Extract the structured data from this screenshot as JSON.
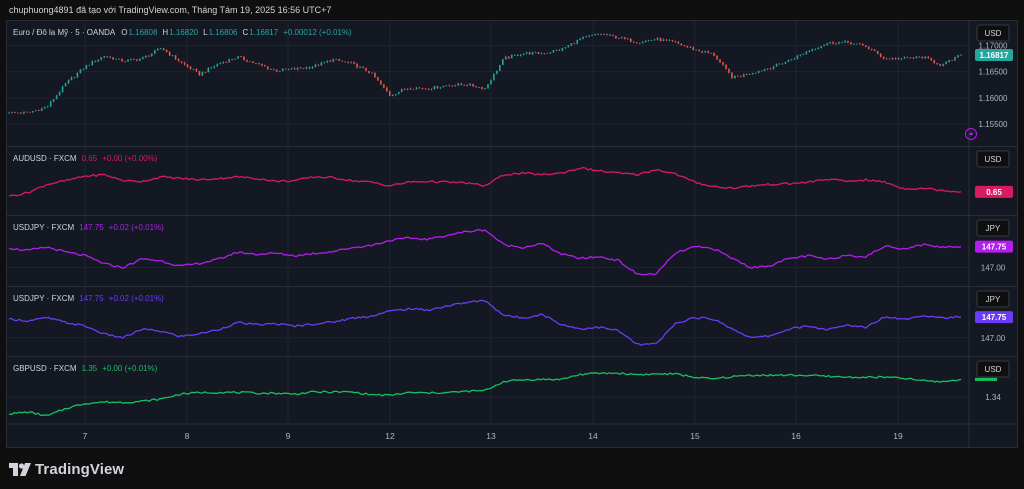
{
  "header": {
    "credit": "chuphuong4891 đã tạo với TradingView.com, Tháng Tám 19, 2025 16:56 UTC+7"
  },
  "footer": {
    "brand": "TradingView"
  },
  "colors": {
    "background": "#141823",
    "grid": "#1f2330",
    "eurusd_up": "#26a69a",
    "eurusd_down": "#ef5350",
    "audusd": "#d81b60",
    "usdjpy1": "#b41cf0",
    "usdjpy2": "#6a3cf5",
    "gbpusd": "#16c060"
  },
  "time_axis": {
    "ticks": [
      "7",
      "8",
      "9",
      "12",
      "13",
      "14",
      "15",
      "16",
      "19"
    ]
  },
  "chart_data": [
    {
      "type": "candlestick",
      "legend": {
        "symbol": "Euro / Đô la Mỹ · 5 · OANDA",
        "open_label": "O",
        "open": "1.16808",
        "high_label": "H",
        "high": "1.16820",
        "low_label": "L",
        "low": "1.16806",
        "close_label": "C",
        "close": "1.16817",
        "change": "+0.00012 (+0.01%)"
      },
      "currency": "USD",
      "last_price": "1.16817",
      "ylim": [
        1.152,
        1.1735
      ],
      "y_ticks": [
        "1.17000",
        "1.16500",
        "1.16000",
        "1.15500"
      ],
      "x": [
        0,
        2,
        4,
        6,
        8,
        10,
        12,
        14,
        16,
        18,
        20,
        22,
        24,
        26,
        28,
        30,
        32,
        34,
        36,
        38,
        40,
        42,
        44,
        46,
        48,
        50,
        52,
        54,
        56,
        58,
        60,
        62,
        64,
        66,
        68,
        70,
        72,
        74,
        76,
        78,
        80,
        82,
        84,
        86,
        88,
        90,
        92,
        94,
        96,
        98,
        100
      ],
      "y": [
        1.1572,
        1.1572,
        1.1583,
        1.1628,
        1.166,
        1.168,
        1.167,
        1.1675,
        1.1695,
        1.1668,
        1.1645,
        1.1665,
        1.1678,
        1.1665,
        1.1652,
        1.1655,
        1.166,
        1.1673,
        1.1665,
        1.1648,
        1.1605,
        1.162,
        1.1618,
        1.1624,
        1.1626,
        1.1618,
        1.1675,
        1.1685,
        1.1685,
        1.1692,
        1.1712,
        1.1722,
        1.1715,
        1.1706,
        1.1712,
        1.1705,
        1.1692,
        1.1683,
        1.1638,
        1.1648,
        1.1658,
        1.1672,
        1.169,
        1.1705,
        1.1706,
        1.1698,
        1.1675,
        1.1675,
        1.1678,
        1.1662,
        1.1682
      ]
    },
    {
      "type": "line",
      "legend": {
        "symbol": "AUDUSD · FXCM",
        "value": "0.65",
        "change": "+0.00 (+0.00%)"
      },
      "currency": "USD",
      "last_label": "0.65",
      "ylim": [
        0.648,
        0.6555
      ],
      "y_ticks": [],
      "x": [
        0,
        2,
        4,
        6,
        8,
        10,
        12,
        14,
        16,
        18,
        20,
        22,
        24,
        26,
        28,
        30,
        32,
        34,
        36,
        38,
        40,
        42,
        44,
        46,
        48,
        50,
        52,
        54,
        56,
        58,
        60,
        62,
        64,
        66,
        68,
        70,
        72,
        74,
        76,
        78,
        80,
        82,
        84,
        86,
        88,
        90,
        92,
        94,
        96,
        98,
        100
      ],
      "y": [
        0.6497,
        0.6502,
        0.6513,
        0.6518,
        0.6524,
        0.6526,
        0.6518,
        0.6517,
        0.6523,
        0.6521,
        0.6519,
        0.6521,
        0.6523,
        0.6521,
        0.6517,
        0.6518,
        0.6523,
        0.6522,
        0.6518,
        0.6516,
        0.6511,
        0.6516,
        0.6517,
        0.6516,
        0.6515,
        0.6511,
        0.6526,
        0.6528,
        0.6526,
        0.6528,
        0.6535,
        0.6531,
        0.6528,
        0.6526,
        0.6533,
        0.6527,
        0.6516,
        0.651,
        0.6508,
        0.6511,
        0.6513,
        0.6514,
        0.6516,
        0.652,
        0.6517,
        0.6519,
        0.6516,
        0.6507,
        0.6508,
        0.6505,
        0.6503
      ]
    },
    {
      "type": "line",
      "legend": {
        "symbol": "USDJPY · FXCM",
        "value": "147.75",
        "change": "+0.02 (+0.01%)"
      },
      "currency": "JPY",
      "last_label": "147.75",
      "ylim": [
        146.55,
        148.65
      ],
      "y_ticks": [
        "147.00"
      ],
      "x": [
        0,
        2,
        4,
        6,
        8,
        10,
        12,
        14,
        16,
        18,
        20,
        22,
        24,
        26,
        28,
        30,
        32,
        34,
        36,
        38,
        40,
        42,
        44,
        46,
        48,
        50,
        52,
        54,
        56,
        58,
        60,
        62,
        64,
        66,
        68,
        70,
        72,
        74,
        76,
        78,
        80,
        82,
        84,
        86,
        88,
        90,
        92,
        94,
        96,
        98,
        100
      ],
      "y": [
        147.7,
        147.62,
        147.74,
        147.56,
        147.43,
        147.14,
        147.0,
        147.32,
        147.24,
        147.05,
        147.15,
        147.3,
        147.56,
        147.48,
        147.52,
        147.43,
        147.51,
        147.58,
        147.72,
        147.8,
        147.98,
        148.07,
        148.02,
        148.17,
        148.3,
        148.37,
        147.82,
        147.73,
        147.87,
        147.49,
        147.33,
        147.39,
        147.26,
        146.75,
        146.77,
        147.52,
        147.75,
        147.69,
        147.33,
        146.99,
        147.08,
        147.33,
        147.43,
        147.29,
        147.46,
        147.39,
        147.78,
        147.68,
        147.83,
        147.74,
        147.76
      ]
    },
    {
      "type": "line",
      "legend": {
        "symbol": "USDJPY · FXCM",
        "value": "147.75",
        "change": "+0.02 (+0.01%)"
      },
      "currency": "JPY",
      "last_label": "147.75",
      "ylim": [
        146.55,
        148.65
      ],
      "y_ticks": [
        "147.00"
      ],
      "x": [
        0,
        2,
        4,
        6,
        8,
        10,
        12,
        14,
        16,
        18,
        20,
        22,
        24,
        26,
        28,
        30,
        32,
        34,
        36,
        38,
        40,
        42,
        44,
        46,
        48,
        50,
        52,
        54,
        56,
        58,
        60,
        62,
        64,
        66,
        68,
        70,
        72,
        74,
        76,
        78,
        80,
        82,
        84,
        86,
        88,
        90,
        92,
        94,
        96,
        98,
        100
      ],
      "y": [
        147.7,
        147.62,
        147.74,
        147.56,
        147.43,
        147.14,
        147.0,
        147.32,
        147.24,
        147.05,
        147.15,
        147.3,
        147.56,
        147.48,
        147.52,
        147.43,
        147.51,
        147.58,
        147.72,
        147.8,
        147.98,
        148.07,
        148.02,
        148.17,
        148.3,
        148.37,
        147.82,
        147.73,
        147.87,
        147.49,
        147.33,
        147.39,
        147.26,
        146.75,
        146.77,
        147.52,
        147.75,
        147.69,
        147.33,
        146.99,
        147.08,
        147.33,
        147.43,
        147.29,
        147.46,
        147.39,
        147.78,
        147.68,
        147.83,
        147.74,
        147.76
      ]
    },
    {
      "type": "line",
      "legend": {
        "symbol": "GBPUSD · FXCM",
        "value": "1.35",
        "change": "+0.00 (+0.01%)"
      },
      "currency": "USD",
      "last_label": "",
      "ylim": [
        1.33,
        1.357
      ],
      "y_ticks": [
        "1.34"
      ],
      "x": [
        0,
        2,
        4,
        6,
        8,
        10,
        12,
        14,
        16,
        18,
        20,
        22,
        24,
        26,
        28,
        30,
        32,
        34,
        36,
        38,
        40,
        42,
        44,
        46,
        48,
        50,
        52,
        54,
        56,
        58,
        60,
        62,
        64,
        66,
        68,
        70,
        72,
        74,
        76,
        78,
        80,
        82,
        84,
        86,
        88,
        90,
        92,
        94,
        96,
        98,
        100
      ],
      "y": [
        1.3315,
        1.3325,
        1.3305,
        1.3343,
        1.3368,
        1.3375,
        1.3373,
        1.3379,
        1.339,
        1.3415,
        1.3422,
        1.3423,
        1.3423,
        1.3419,
        1.3419,
        1.3415,
        1.3425,
        1.3425,
        1.3425,
        1.3412,
        1.3408,
        1.3422,
        1.342,
        1.3422,
        1.3428,
        1.3432,
        1.3478,
        1.3486,
        1.3488,
        1.3488,
        1.3513,
        1.3519,
        1.3519,
        1.3512,
        1.3515,
        1.3515,
        1.3499,
        1.349,
        1.3502,
        1.3509,
        1.3509,
        1.3509,
        1.3508,
        1.3503,
        1.3499,
        1.3499,
        1.3499,
        1.3493,
        1.3482,
        1.3476,
        1.3488
      ]
    }
  ]
}
